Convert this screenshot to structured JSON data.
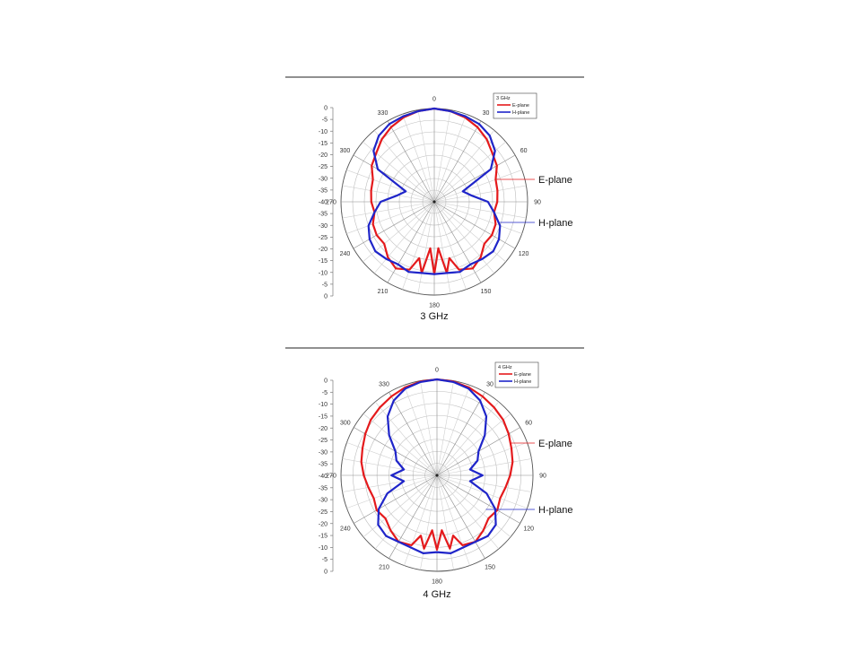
{
  "chart_data": [
    {
      "type": "polar",
      "caption": "3 GHz",
      "legend": {
        "title": "3 GHz",
        "entries": [
          "E-plane",
          "H-plane"
        ]
      },
      "annotations": [
        "E-plane",
        "H-plane"
      ],
      "colors": {
        "E-plane": "#e41a1c",
        "H-plane": "#1f25c9"
      },
      "radial_ticks": [
        "0",
        "-5",
        "-10",
        "-15",
        "-20",
        "-25",
        "-30",
        "-35",
        "-40",
        "-35",
        "-30",
        "-25",
        "-20",
        "-15",
        "-10",
        "-5",
        "0"
      ],
      "radial_range": [
        -40,
        0
      ],
      "angle_ticks": [
        "0",
        "30",
        "60",
        "90",
        "120",
        "150",
        "180",
        "210",
        "240",
        "270",
        "300",
        "330"
      ],
      "series": [
        {
          "name": "E-plane",
          "theta": [
            0,
            10,
            20,
            30,
            40,
            50,
            60,
            70,
            80,
            90,
            100,
            110,
            120,
            130,
            140,
            150,
            160,
            165,
            170,
            175,
            180,
            185,
            190,
            195,
            200,
            210,
            220,
            230,
            240,
            250,
            260,
            270,
            280,
            290,
            300,
            310,
            320,
            330,
            340,
            350,
            360
          ],
          "r": [
            0,
            -0.5,
            -1.5,
            -3,
            -5,
            -7.5,
            -9,
            -12,
            -12.5,
            -13,
            -14,
            -12,
            -11.5,
            -12,
            -9,
            -7,
            -9,
            -15,
            -9,
            -20,
            -9,
            -20,
            -9,
            -15,
            -9,
            -7,
            -9,
            -12,
            -11.5,
            -12,
            -14,
            -13,
            -12.5,
            -12,
            -9,
            -7.5,
            -5,
            -3,
            -1.5,
            -0.5,
            0
          ]
        },
        {
          "name": "H-plane",
          "theta": [
            0,
            10,
            20,
            30,
            40,
            50,
            60,
            70,
            80,
            90,
            100,
            110,
            120,
            130,
            140,
            150,
            160,
            170,
            180,
            190,
            200,
            210,
            220,
            230,
            240,
            250,
            260,
            270,
            280,
            290,
            300,
            310,
            320,
            330,
            340,
            350,
            360
          ],
          "r": [
            0,
            -0.5,
            -1,
            -1.5,
            -3,
            -6,
            -12,
            -27,
            -24,
            -17,
            -14,
            -10,
            -8,
            -7,
            -8,
            -9,
            -8,
            -9,
            -9,
            -9,
            -8,
            -9,
            -8,
            -7,
            -8,
            -10,
            -14,
            -17,
            -24,
            -27,
            -12,
            -6,
            -3,
            -1.5,
            -1,
            -0.5,
            0
          ]
        }
      ]
    },
    {
      "type": "polar",
      "caption": "4 GHz",
      "legend": {
        "title": "4 GHz",
        "entries": [
          "E-plane",
          "H-plane"
        ]
      },
      "annotations": [
        "E-plane",
        "H-plane"
      ],
      "colors": {
        "E-plane": "#e41a1c",
        "H-plane": "#1f25c9"
      },
      "radial_ticks": [
        "0",
        "-5",
        "-10",
        "-15",
        "-20",
        "-25",
        "-30",
        "-35",
        "-40",
        "-35",
        "-30",
        "-25",
        "-20",
        "-15",
        "-10",
        "-5",
        "0"
      ],
      "radial_range": [
        -40,
        0
      ],
      "angle_ticks": [
        "0",
        "30",
        "60",
        "90",
        "120",
        "150",
        "180",
        "210",
        "240",
        "270",
        "300",
        "330"
      ],
      "series": [
        {
          "name": "E-plane",
          "theta": [
            0,
            10,
            20,
            30,
            40,
            50,
            60,
            70,
            80,
            90,
            100,
            110,
            120,
            130,
            140,
            150,
            160,
            165,
            170,
            175,
            180,
            185,
            190,
            195,
            200,
            210,
            220,
            230,
            240,
            250,
            260,
            270,
            280,
            290,
            300,
            310,
            320,
            330,
            340,
            350,
            360
          ],
          "r": [
            0,
            -0.3,
            -1,
            -2,
            -3,
            -4,
            -5.5,
            -7,
            -8,
            -9.5,
            -11,
            -12,
            -11,
            -12,
            -10,
            -8,
            -9,
            -14,
            -9,
            -17,
            -9,
            -17,
            -9,
            -14,
            -9,
            -8,
            -10,
            -12,
            -11,
            -12,
            -11,
            -9.5,
            -8,
            -7,
            -5.5,
            -4,
            -3,
            -2,
            -1,
            -0.3,
            0
          ]
        },
        {
          "name": "H-plane",
          "theta": [
            0,
            10,
            20,
            30,
            40,
            50,
            60,
            70,
            80,
            90,
            100,
            110,
            120,
            130,
            140,
            150,
            160,
            170,
            180,
            190,
            200,
            210,
            220,
            230,
            240,
            250,
            260,
            270,
            280,
            290,
            300,
            310,
            320,
            330,
            340,
            350,
            360
          ],
          "r": [
            0,
            -0.5,
            -1.5,
            -4,
            -8,
            -14,
            -20,
            -22,
            -26,
            -21,
            -26,
            -18,
            -12,
            -8,
            -7,
            -8,
            -8,
            -7,
            -8,
            -7,
            -8,
            -8,
            -7,
            -8,
            -12,
            -18,
            -26,
            -21,
            -26,
            -22,
            -20,
            -14,
            -8,
            -4,
            -1.5,
            -0.5,
            0
          ]
        }
      ]
    }
  ]
}
